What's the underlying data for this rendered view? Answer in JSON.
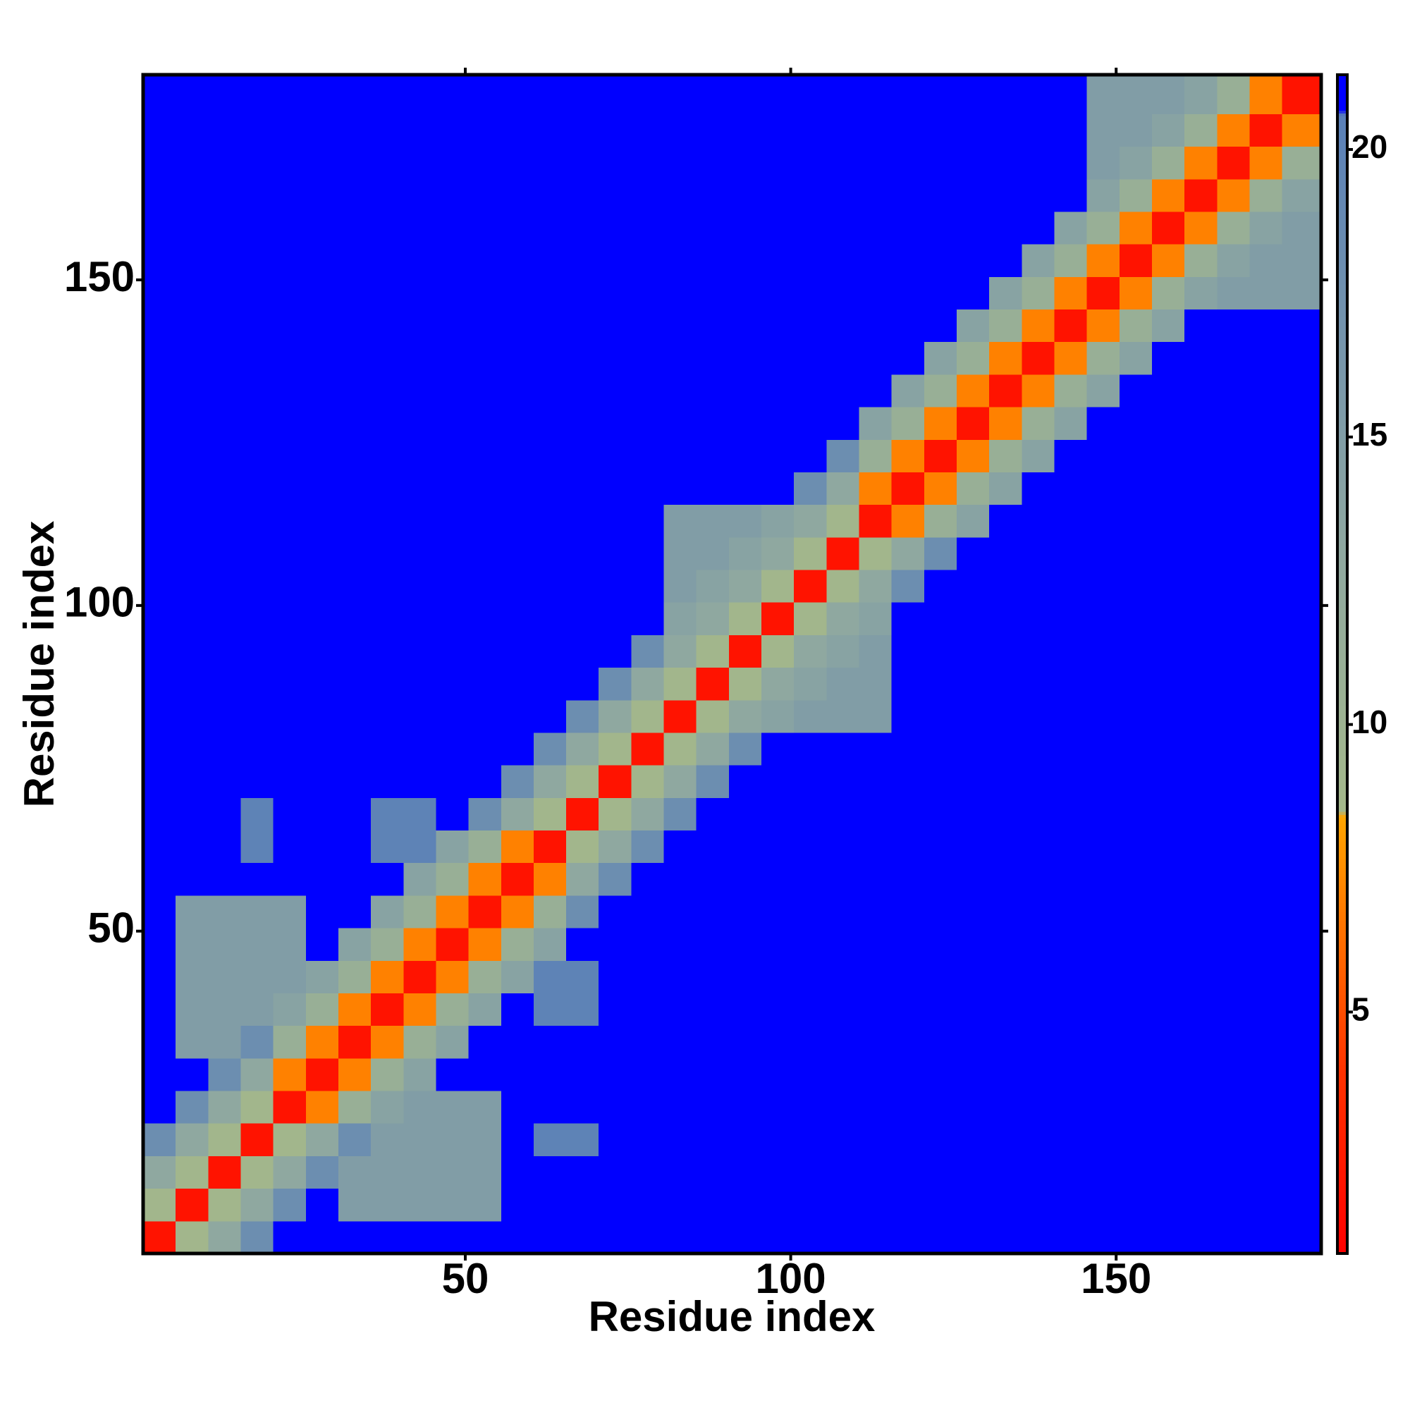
{
  "chart_data": {
    "type": "heatmap",
    "xlabel": "Residue index",
    "ylabel": "Residue index",
    "xbins": [
      0.5,
      5.5,
      10.5,
      15.5,
      20.5,
      25.5,
      30.5,
      35.5,
      40.5,
      45.5,
      50.5,
      55.5,
      60.5,
      65.5,
      70.5,
      75.5,
      80.5,
      85.5,
      90.5,
      95.5,
      100.5,
      105.5,
      110.5,
      115.5,
      120.5,
      125.5,
      130.5,
      135.5,
      140.5,
      145.5,
      150.5,
      155.5,
      160.5,
      165.5,
      170.5,
      175.5,
      181.5
    ],
    "ybins": [
      0.5,
      5.5,
      10.5,
      15.5,
      20.5,
      25.5,
      30.5,
      35.5,
      40.5,
      45.5,
      50.5,
      55.5,
      60.5,
      65.5,
      70.5,
      75.5,
      80.5,
      85.5,
      90.5,
      95.5,
      100.5,
      105.5,
      110.5,
      115.5,
      120.5,
      125.5,
      130.5,
      135.5,
      140.5,
      145.5,
      150.5,
      155.5,
      160.5,
      165.5,
      170.5,
      175.5,
      181.5
    ],
    "xlim": [
      0.5,
      181.5
    ],
    "ylim": [
      0.5,
      181.5
    ],
    "xticks": [
      50,
      100,
      150
    ],
    "yticks": [
      50,
      100,
      150
    ],
    "zlim": [
      0.8,
      21.3
    ],
    "zticks": [
      5,
      10,
      15,
      20
    ],
    "colorscale": [
      {
        "value": 0.8,
        "color": "#ff0000"
      },
      {
        "value": 4,
        "color": "#ff3300"
      },
      {
        "value": 8.4,
        "color": "#ffa500"
      },
      {
        "value": 8.5,
        "color": "#a4b88a"
      },
      {
        "value": 13,
        "color": "#8fa8a0"
      },
      {
        "value": 20.6,
        "color": "#5a80b8"
      },
      {
        "value": 20.7,
        "color": "#0000ff"
      },
      {
        "value": 21.3,
        "color": "#0000ff"
      }
    ],
    "z": [
      [
        2,
        9,
        13,
        18,
        21,
        21,
        21,
        21,
        21,
        21,
        21,
        21,
        21,
        21,
        21,
        21,
        21,
        21,
        21,
        21,
        21,
        21,
        21,
        21,
        21,
        21,
        21,
        21,
        21,
        21,
        21,
        21,
        21,
        21,
        21,
        21
      ],
      [
        9,
        2,
        9,
        13,
        18,
        21,
        15,
        15,
        15,
        15,
        15,
        21,
        21,
        21,
        21,
        21,
        21,
        21,
        21,
        21,
        21,
        21,
        21,
        21,
        21,
        21,
        21,
        21,
        21,
        21,
        21,
        21,
        21,
        21,
        21,
        21
      ],
      [
        13,
        9,
        2,
        9,
        13,
        18,
        15,
        15,
        15,
        15,
        15,
        21,
        21,
        21,
        21,
        21,
        21,
        21,
        21,
        21,
        21,
        21,
        21,
        21,
        21,
        21,
        21,
        21,
        21,
        21,
        21,
        21,
        21,
        21,
        21,
        21
      ],
      [
        18,
        13,
        9,
        2,
        9,
        13,
        18,
        15,
        15,
        15,
        15,
        21,
        20,
        20,
        21,
        21,
        21,
        21,
        21,
        21,
        21,
        21,
        21,
        21,
        21,
        21,
        21,
        21,
        21,
        21,
        21,
        21,
        21,
        21,
        21,
        21
      ],
      [
        21,
        18,
        13,
        9,
        2,
        7,
        11,
        14,
        15,
        15,
        15,
        21,
        21,
        21,
        21,
        21,
        21,
        21,
        21,
        21,
        21,
        21,
        21,
        21,
        21,
        21,
        21,
        21,
        21,
        21,
        21,
        21,
        21,
        21,
        21,
        21
      ],
      [
        21,
        21,
        18,
        13,
        7,
        2,
        7,
        11,
        14,
        21,
        21,
        21,
        21,
        21,
        21,
        21,
        21,
        21,
        21,
        21,
        21,
        21,
        21,
        21,
        21,
        21,
        21,
        21,
        21,
        21,
        21,
        21,
        21,
        21,
        21,
        21
      ],
      [
        21,
        15,
        15,
        18,
        11,
        7,
        2,
        7,
        11,
        14,
        21,
        21,
        21,
        21,
        21,
        21,
        21,
        21,
        21,
        21,
        21,
        21,
        21,
        21,
        21,
        21,
        21,
        21,
        21,
        21,
        21,
        21,
        21,
        21,
        21,
        21
      ],
      [
        21,
        15,
        15,
        15,
        14,
        11,
        7,
        2,
        7,
        11,
        14,
        21,
        20,
        20,
        21,
        21,
        21,
        21,
        21,
        21,
        21,
        21,
        21,
        21,
        21,
        21,
        21,
        21,
        21,
        21,
        21,
        21,
        21,
        21,
        21,
        21
      ],
      [
        21,
        15,
        15,
        15,
        15,
        14,
        11,
        7,
        2,
        7,
        11,
        14,
        20,
        20,
        21,
        21,
        21,
        21,
        21,
        21,
        21,
        21,
        21,
        21,
        21,
        21,
        21,
        21,
        21,
        21,
        21,
        21,
        21,
        21,
        21,
        21
      ],
      [
        21,
        15,
        15,
        15,
        15,
        21,
        14,
        11,
        7,
        2,
        7,
        11,
        14,
        21,
        21,
        21,
        21,
        21,
        21,
        21,
        21,
        21,
        21,
        21,
        21,
        21,
        21,
        21,
        21,
        21,
        21,
        21,
        21,
        21,
        21,
        21
      ],
      [
        21,
        15,
        15,
        15,
        15,
        21,
        21,
        14,
        11,
        7,
        2,
        7,
        11,
        18,
        21,
        21,
        21,
        21,
        21,
        21,
        21,
        21,
        21,
        21,
        21,
        21,
        21,
        21,
        21,
        21,
        21,
        21,
        21,
        21,
        21,
        21
      ],
      [
        21,
        21,
        21,
        21,
        21,
        21,
        21,
        21,
        14,
        11,
        7,
        2,
        7,
        13,
        18,
        21,
        21,
        21,
        21,
        21,
        21,
        21,
        21,
        21,
        21,
        21,
        21,
        21,
        21,
        21,
        21,
        21,
        21,
        21,
        21,
        21
      ],
      [
        21,
        21,
        21,
        20,
        21,
        21,
        21,
        20,
        20,
        14,
        11,
        7,
        2,
        9,
        13,
        18,
        21,
        21,
        21,
        21,
        21,
        21,
        21,
        21,
        21,
        21,
        21,
        21,
        21,
        21,
        21,
        21,
        21,
        21,
        21,
        21
      ],
      [
        21,
        21,
        21,
        20,
        21,
        21,
        21,
        20,
        20,
        21,
        18,
        13,
        9,
        2,
        9,
        13,
        18,
        21,
        21,
        21,
        21,
        21,
        21,
        21,
        21,
        21,
        21,
        21,
        21,
        21,
        21,
        21,
        21,
        21,
        21,
        21
      ],
      [
        21,
        21,
        21,
        21,
        21,
        21,
        21,
        21,
        21,
        21,
        21,
        18,
        13,
        9,
        2,
        9,
        13,
        18,
        21,
        21,
        21,
        21,
        21,
        21,
        21,
        21,
        21,
        21,
        21,
        21,
        21,
        21,
        21,
        21,
        21,
        21
      ],
      [
        21,
        21,
        21,
        21,
        21,
        21,
        21,
        21,
        21,
        21,
        21,
        21,
        18,
        13,
        9,
        2,
        9,
        13,
        18,
        21,
        21,
        21,
        21,
        21,
        21,
        21,
        21,
        21,
        21,
        21,
        21,
        21,
        21,
        21,
        21,
        21
      ],
      [
        21,
        21,
        21,
        21,
        21,
        21,
        21,
        21,
        21,
        21,
        21,
        21,
        21,
        18,
        13,
        9,
        2,
        9,
        13,
        14,
        15,
        15,
        15,
        21,
        21,
        21,
        21,
        21,
        21,
        21,
        21,
        21,
        21,
        21,
        21,
        21
      ],
      [
        21,
        21,
        21,
        21,
        21,
        21,
        21,
        21,
        21,
        21,
        21,
        21,
        21,
        21,
        18,
        13,
        9,
        2,
        9,
        13,
        14,
        15,
        15,
        21,
        21,
        21,
        21,
        21,
        21,
        21,
        21,
        21,
        21,
        21,
        21,
        21
      ],
      [
        21,
        21,
        21,
        21,
        21,
        21,
        21,
        21,
        21,
        21,
        21,
        21,
        21,
        21,
        21,
        18,
        13,
        9,
        2,
        9,
        13,
        14,
        15,
        21,
        21,
        21,
        21,
        21,
        21,
        21,
        21,
        21,
        21,
        21,
        21,
        21
      ],
      [
        21,
        21,
        21,
        21,
        21,
        21,
        21,
        21,
        21,
        21,
        21,
        21,
        21,
        21,
        21,
        21,
        14,
        13,
        9,
        2,
        9,
        13,
        14,
        21,
        21,
        21,
        21,
        21,
        21,
        21,
        21,
        21,
        21,
        21,
        21,
        21
      ],
      [
        21,
        21,
        21,
        21,
        21,
        21,
        21,
        21,
        21,
        21,
        21,
        21,
        21,
        21,
        21,
        21,
        15,
        14,
        13,
        9,
        2,
        9,
        13,
        18,
        21,
        21,
        21,
        21,
        21,
        21,
        21,
        21,
        21,
        21,
        21,
        21
      ],
      [
        21,
        21,
        21,
        21,
        21,
        21,
        21,
        21,
        21,
        21,
        21,
        21,
        21,
        21,
        21,
        21,
        15,
        15,
        14,
        13,
        9,
        2,
        9,
        13,
        18,
        21,
        21,
        21,
        21,
        21,
        21,
        21,
        21,
        21,
        21,
        21
      ],
      [
        21,
        21,
        21,
        21,
        21,
        21,
        21,
        21,
        21,
        21,
        21,
        21,
        21,
        21,
        21,
        21,
        15,
        15,
        15,
        14,
        13,
        9,
        2,
        7,
        11,
        14,
        21,
        21,
        21,
        21,
        21,
        21,
        21,
        21,
        21,
        21
      ],
      [
        21,
        21,
        21,
        21,
        21,
        21,
        21,
        21,
        21,
        21,
        21,
        21,
        21,
        21,
        21,
        21,
        21,
        21,
        21,
        21,
        18,
        13,
        7,
        2,
        7,
        11,
        14,
        21,
        21,
        21,
        21,
        21,
        21,
        21,
        21,
        21
      ],
      [
        21,
        21,
        21,
        21,
        21,
        21,
        21,
        21,
        21,
        21,
        21,
        21,
        21,
        21,
        21,
        21,
        21,
        21,
        21,
        21,
        21,
        18,
        11,
        7,
        2,
        7,
        11,
        14,
        21,
        21,
        21,
        21,
        21,
        21,
        21,
        21
      ],
      [
        21,
        21,
        21,
        21,
        21,
        21,
        21,
        21,
        21,
        21,
        21,
        21,
        21,
        21,
        21,
        21,
        21,
        21,
        21,
        21,
        21,
        21,
        14,
        11,
        7,
        2,
        7,
        11,
        14,
        21,
        21,
        21,
        21,
        21,
        21,
        21
      ],
      [
        21,
        21,
        21,
        21,
        21,
        21,
        21,
        21,
        21,
        21,
        21,
        21,
        21,
        21,
        21,
        21,
        21,
        21,
        21,
        21,
        21,
        21,
        21,
        14,
        11,
        7,
        2,
        7,
        11,
        14,
        21,
        21,
        21,
        21,
        21,
        21
      ],
      [
        21,
        21,
        21,
        21,
        21,
        21,
        21,
        21,
        21,
        21,
        21,
        21,
        21,
        21,
        21,
        21,
        21,
        21,
        21,
        21,
        21,
        21,
        21,
        21,
        14,
        11,
        7,
        2,
        7,
        11,
        14,
        21,
        21,
        21,
        21,
        21
      ],
      [
        21,
        21,
        21,
        21,
        21,
        21,
        21,
        21,
        21,
        21,
        21,
        21,
        21,
        21,
        21,
        21,
        21,
        21,
        21,
        21,
        21,
        21,
        21,
        21,
        21,
        14,
        11,
        7,
        2,
        7,
        11,
        14,
        21,
        21,
        21,
        21
      ],
      [
        21,
        21,
        21,
        21,
        21,
        21,
        21,
        21,
        21,
        21,
        21,
        21,
        21,
        21,
        21,
        21,
        21,
        21,
        21,
        21,
        21,
        21,
        21,
        21,
        21,
        21,
        14,
        11,
        7,
        2,
        7,
        11,
        14,
        15,
        15,
        15
      ],
      [
        21,
        21,
        21,
        21,
        21,
        21,
        21,
        21,
        21,
        21,
        21,
        21,
        21,
        21,
        21,
        21,
        21,
        21,
        21,
        21,
        21,
        21,
        21,
        21,
        21,
        21,
        21,
        14,
        11,
        7,
        2,
        7,
        11,
        14,
        15,
        15
      ],
      [
        21,
        21,
        21,
        21,
        21,
        21,
        21,
        21,
        21,
        21,
        21,
        21,
        21,
        21,
        21,
        21,
        21,
        21,
        21,
        21,
        21,
        21,
        21,
        21,
        21,
        21,
        21,
        21,
        14,
        11,
        7,
        2,
        7,
        11,
        14,
        15
      ],
      [
        21,
        21,
        21,
        21,
        21,
        21,
        21,
        21,
        21,
        21,
        21,
        21,
        21,
        21,
        21,
        21,
        21,
        21,
        21,
        21,
        21,
        21,
        21,
        21,
        21,
        21,
        21,
        21,
        21,
        14,
        11,
        7,
        2,
        7,
        11,
        14
      ],
      [
        21,
        21,
        21,
        21,
        21,
        21,
        21,
        21,
        21,
        21,
        21,
        21,
        21,
        21,
        21,
        21,
        21,
        21,
        21,
        21,
        21,
        21,
        21,
        21,
        21,
        21,
        21,
        21,
        21,
        15,
        14,
        11,
        7,
        2,
        7,
        11
      ],
      [
        21,
        21,
        21,
        21,
        21,
        21,
        21,
        21,
        21,
        21,
        21,
        21,
        21,
        21,
        21,
        21,
        21,
        21,
        21,
        21,
        21,
        21,
        21,
        21,
        21,
        21,
        21,
        21,
        21,
        15,
        15,
        14,
        11,
        7,
        2,
        7
      ],
      [
        21,
        21,
        21,
        21,
        21,
        21,
        21,
        21,
        21,
        21,
        21,
        21,
        21,
        21,
        21,
        21,
        21,
        21,
        21,
        21,
        21,
        21,
        21,
        21,
        21,
        21,
        21,
        21,
        21,
        15,
        15,
        15,
        14,
        11,
        7,
        2
      ]
    ]
  }
}
